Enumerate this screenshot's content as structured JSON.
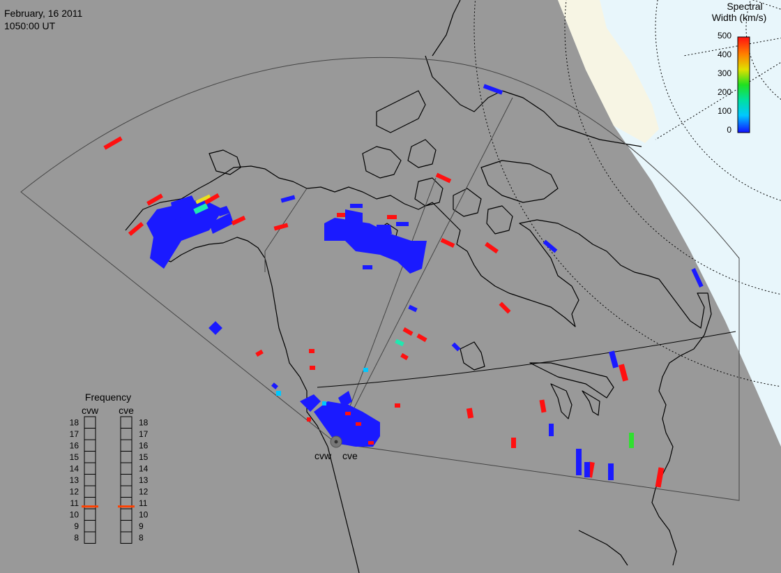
{
  "header": {
    "date": "February, 16 2011",
    "time": "1050:00 UT"
  },
  "colorbar": {
    "title_line1": "Spectral",
    "title_line2": "Width (km/s)",
    "ticks": [
      "500",
      "400",
      "300",
      "200",
      "100",
      "0"
    ],
    "colors_bottom_to_top": [
      "#1010ff",
      "#00c8ff",
      "#00e0a0",
      "#20e020",
      "#e0e000",
      "#ff8000",
      "#ff1010"
    ]
  },
  "radars": {
    "west_label": "cvw",
    "east_label": "cve"
  },
  "frequency_panel": {
    "title": "Frequency",
    "left_label": "cvw",
    "right_label": "cve",
    "levels": [
      "18",
      "17",
      "16",
      "15",
      "14",
      "13",
      "12",
      "11",
      "10",
      "9",
      "8"
    ],
    "cvw_value": 10.7,
    "cve_value": 10.7,
    "marker_color": "#ff4000"
  },
  "colors": {
    "land": "#999999",
    "ocean_polar": "#e8f6fb",
    "terminator": "#f7f5e4",
    "high_width": "#ff1010",
    "low_width": "#1010ff"
  }
}
